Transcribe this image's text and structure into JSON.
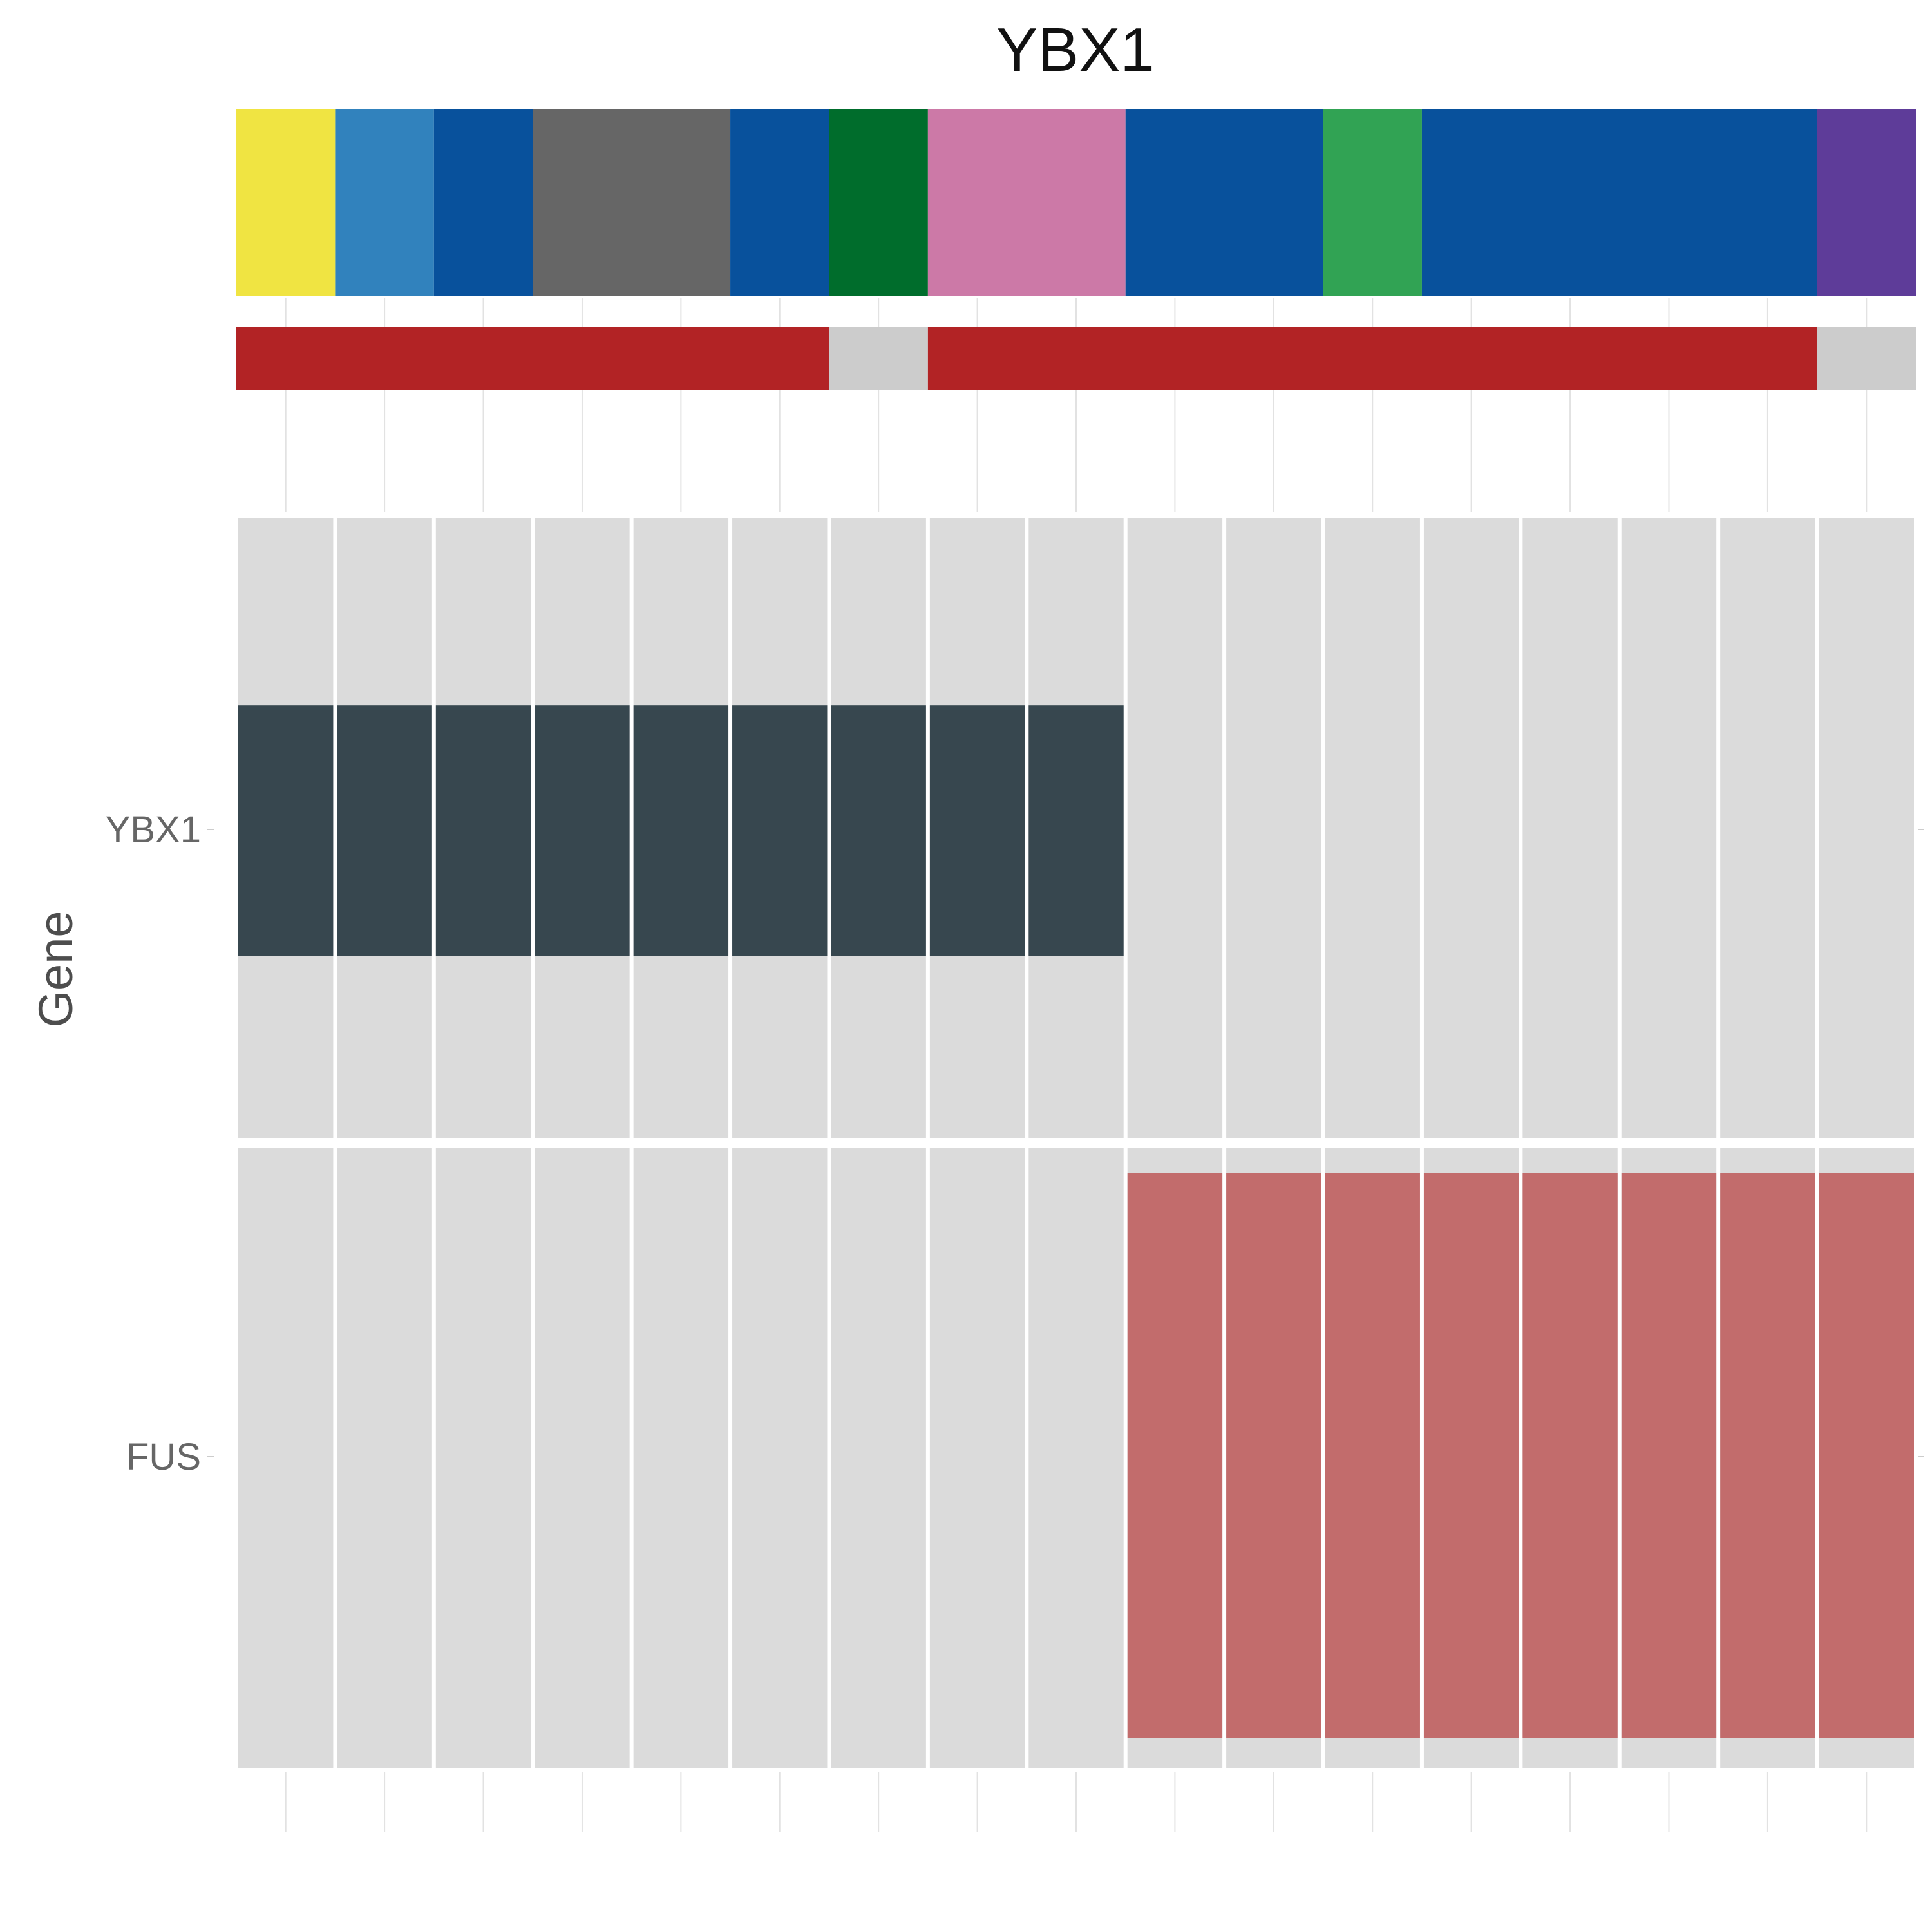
{
  "chart_data": {
    "type": "heatmap",
    "title": "YBX1",
    "ylabel": "Gene",
    "xlabel": "",
    "columns": 17,
    "rows": [
      "YBX1",
      "FUS"
    ],
    "annotation_tracks": [
      {
        "segments": [
          {
            "from": 1,
            "to": 1,
            "color": "#F0E442"
          },
          {
            "from": 2,
            "to": 2,
            "color": "#3182BD"
          },
          {
            "from": 3,
            "to": 3,
            "color": "#08519C"
          },
          {
            "from": 4,
            "to": 5,
            "color": "#666666"
          },
          {
            "from": 6,
            "to": 6,
            "color": "#08519C"
          },
          {
            "from": 7,
            "to": 7,
            "color": "#006D2C"
          },
          {
            "from": 8,
            "to": 9,
            "color": "#CC79A7"
          },
          {
            "from": 10,
            "to": 11,
            "color": "#08519C"
          },
          {
            "from": 12,
            "to": 12,
            "color": "#31A354"
          },
          {
            "from": 13,
            "to": 16,
            "color": "#08519C"
          },
          {
            "from": 17,
            "to": 17,
            "color": "#5E3C99"
          }
        ]
      },
      {
        "segments": [
          {
            "from": 1,
            "to": 6,
            "color": "#B22325"
          },
          {
            "from": 7,
            "to": 7,
            "color": "#CCCCCC"
          },
          {
            "from": 8,
            "to": 16,
            "color": "#B22325"
          },
          {
            "from": 17,
            "to": 17,
            "color": "#CCCCCC"
          }
        ]
      }
    ],
    "values": {
      "YBX1": [
        1,
        1,
        1,
        1,
        1,
        1,
        1,
        1,
        1,
        0,
        0,
        0,
        0,
        0,
        0,
        0,
        0
      ],
      "FUS": [
        0,
        0,
        0,
        0,
        0,
        0,
        0,
        0,
        0,
        1,
        1,
        1,
        1,
        1,
        1,
        1,
        1
      ]
    },
    "bar_fraction": {
      "YBX1": 0.405,
      "FUS": 0.91
    },
    "colors": {
      "YBX1": "#37474F",
      "FUS": "#C26C6C",
      "background": "#DBDBDB",
      "gridline": "#E2E2E2"
    },
    "grid": true,
    "legend": "none"
  }
}
